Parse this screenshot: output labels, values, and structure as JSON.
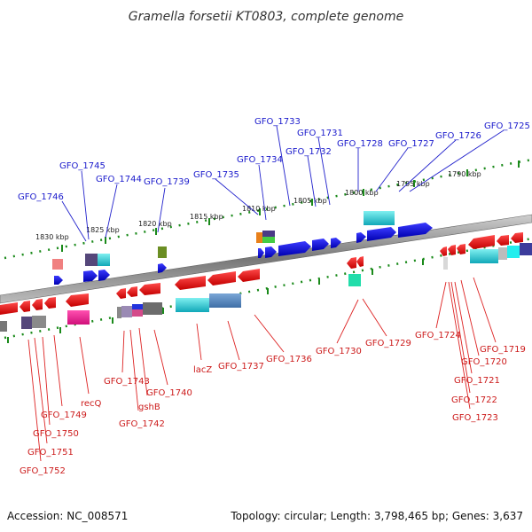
{
  "title": "Gramella forsetii KT0803, complete genome",
  "footer": {
    "accession": "Accession: NC_008571",
    "summary": "Topology: circular; Length: 3,798,465 bp; Genes: 3,637"
  },
  "scale_labels": [
    "1830 kbp",
    "1825 kbp",
    "1820 kbp",
    "1815 kbp",
    "1810 kbp",
    "1805 kbp",
    "1800 kbp",
    "1795 kbp",
    "1790 kbp"
  ],
  "top_genes": [
    "GFO_1746",
    "GFO_1745",
    "GFO_1744",
    "GFO_1739",
    "GFO_1735",
    "GFO_1734",
    "GFO_1733",
    "GFO_1732",
    "GFO_1731",
    "GFO_1728",
    "GFO_1727",
    "GFO_1726",
    "GFO_1725"
  ],
  "bottom_genes": [
    "GFO_1752",
    "GFO_1751",
    "GFO_1750",
    "GFO_1749",
    "recQ",
    "GFO_1743",
    "GFO_1742",
    "gshB",
    "GFO_1740",
    "lacZ",
    "GFO_1737",
    "GFO_1736",
    "GFO_1730",
    "GFO_1729",
    "GFO_1724",
    "GFO_1723",
    "GFO_1722",
    "GFO_1721",
    "GFO_1720",
    "GFO_1719"
  ],
  "colors": {
    "forward_strand": "#0000ee",
    "reverse_strand": "#ee0000",
    "label_forward": "#1a1acc",
    "label_reverse": "#cc1a1a",
    "ticks": "#1a8a1a",
    "backbone": "#888888"
  }
}
